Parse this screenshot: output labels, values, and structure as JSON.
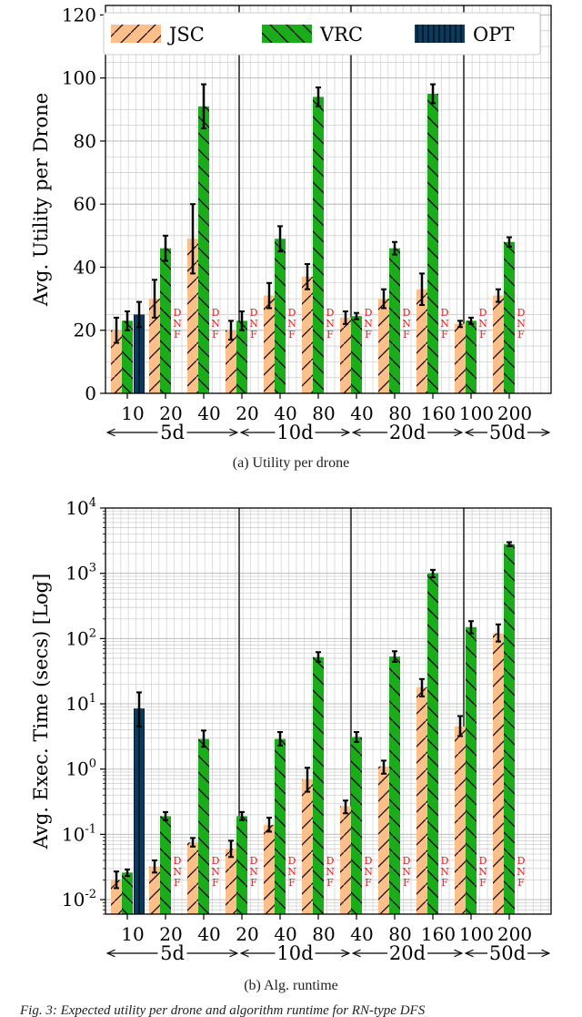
{
  "figure_caption_fragment": "Fig. 3: Expected utility per drone and algorithm runtime for RN-type DFS",
  "legend": [
    {
      "label": "JSC",
      "color": "#fdbf8a",
      "hatch": "/"
    },
    {
      "label": "VRC",
      "color": "#1aac1a",
      "hatch": "\\"
    },
    {
      "label": "OPT",
      "color": "#0d3a5c",
      "hatch": "|"
    }
  ],
  "dnf_text": [
    "D",
    "N",
    "F"
  ],
  "chart_data": [
    {
      "type": "bar",
      "caption": "(a) Utility per drone",
      "ylabel": "Avg. Utility per Drone",
      "yscale": "linear",
      "ylim": [
        0,
        123
      ],
      "yticks": [
        "0",
        "20",
        "40",
        "60",
        "80",
        "100",
        "120"
      ],
      "groups": [
        {
          "label": "5d",
          "categories": [
            "10",
            "20",
            "40"
          ]
        },
        {
          "label": "10d",
          "categories": [
            "20",
            "40",
            "80"
          ]
        },
        {
          "label": "20d",
          "categories": [
            "40",
            "80",
            "160"
          ]
        },
        {
          "label": "50d",
          "categories": [
            "100",
            "200"
          ]
        }
      ],
      "categories": [
        "10",
        "20",
        "40",
        "20",
        "40",
        "80",
        "40",
        "80",
        "160",
        "100",
        "200"
      ],
      "series": [
        {
          "name": "JSC",
          "values": [
            20,
            30,
            49,
            20,
            31,
            37,
            24,
            30,
            33,
            22,
            31
          ],
          "err": [
            4,
            6,
            11,
            3,
            4,
            4,
            2,
            3,
            5,
            1,
            2
          ]
        },
        {
          "name": "VRC",
          "values": [
            23,
            46,
            91,
            23,
            49,
            94,
            null,
            46,
            95,
            23,
            48
          ],
          "err": [
            3,
            4,
            7,
            3,
            4,
            3,
            1,
            2,
            3,
            1,
            1.5
          ]
        },
        {
          "name": "OPT",
          "values": [
            25,
            null,
            null,
            null,
            null,
            null,
            null,
            null,
            null,
            null,
            null
          ],
          "err": [
            4,
            null,
            null,
            null,
            null,
            null,
            null,
            null,
            null,
            null,
            null
          ]
        }
      ],
      "vrc_mid_value": 24.5,
      "dnf": [
        false,
        true,
        true,
        true,
        true,
        true,
        true,
        true,
        true,
        true,
        true
      ],
      "grid": true
    },
    {
      "type": "bar",
      "caption": "(b) Alg. runtime",
      "ylabel": "Avg. Exec. Time (secs) [Log]",
      "yscale": "log",
      "ylim": [
        0.006,
        10000
      ],
      "yticks": [
        "10-2",
        "10-1",
        "100",
        "101",
        "102",
        "103",
        "104"
      ],
      "groups": [
        {
          "label": "5d",
          "categories": [
            "10",
            "20",
            "40"
          ]
        },
        {
          "label": "10d",
          "categories": [
            "20",
            "40",
            "80"
          ]
        },
        {
          "label": "20d",
          "categories": [
            "40",
            "80",
            "160"
          ]
        },
        {
          "label": "50d",
          "categories": [
            "100",
            "200"
          ]
        }
      ],
      "categories": [
        "10",
        "20",
        "40",
        "20",
        "40",
        "80",
        "40",
        "80",
        "160",
        "100",
        "200"
      ],
      "series": [
        {
          "name": "JSC",
          "values": [
            0.02,
            0.032,
            0.075,
            0.06,
            0.14,
            0.7,
            0.27,
            1.1,
            18,
            4.5,
            120
          ],
          "err_lo": [
            0.015,
            0.026,
            0.065,
            0.045,
            0.11,
            0.45,
            0.21,
            0.85,
            13,
            3.2,
            90
          ],
          "err_hi": [
            0.027,
            0.04,
            0.088,
            0.08,
            0.18,
            1.05,
            0.33,
            1.35,
            24,
            6.5,
            165
          ]
        },
        {
          "name": "VRC",
          "values": [
            0.026,
            0.19,
            2.9,
            0.19,
            2.9,
            52,
            3.1,
            53,
            1000,
            150,
            2800
          ],
          "err_lo": [
            0.023,
            0.165,
            2.2,
            0.165,
            2.3,
            44,
            2.6,
            44,
            870,
            120,
            2600
          ],
          "err_hi": [
            0.029,
            0.22,
            3.9,
            0.22,
            3.7,
            62,
            3.7,
            64,
            1130,
            185,
            3000
          ]
        },
        {
          "name": "OPT",
          "values": [
            8.5,
            null,
            null,
            null,
            null,
            null,
            null,
            null,
            null,
            null,
            null
          ],
          "err_lo": [
            4.5,
            null,
            null,
            null,
            null,
            null,
            null,
            null,
            null,
            null,
            null
          ],
          "err_hi": [
            15,
            null,
            null,
            null,
            null,
            null,
            null,
            null,
            null,
            null,
            null
          ]
        }
      ],
      "dnf": [
        false,
        true,
        true,
        true,
        true,
        true,
        true,
        true,
        true,
        true,
        true
      ],
      "grid": true
    }
  ]
}
